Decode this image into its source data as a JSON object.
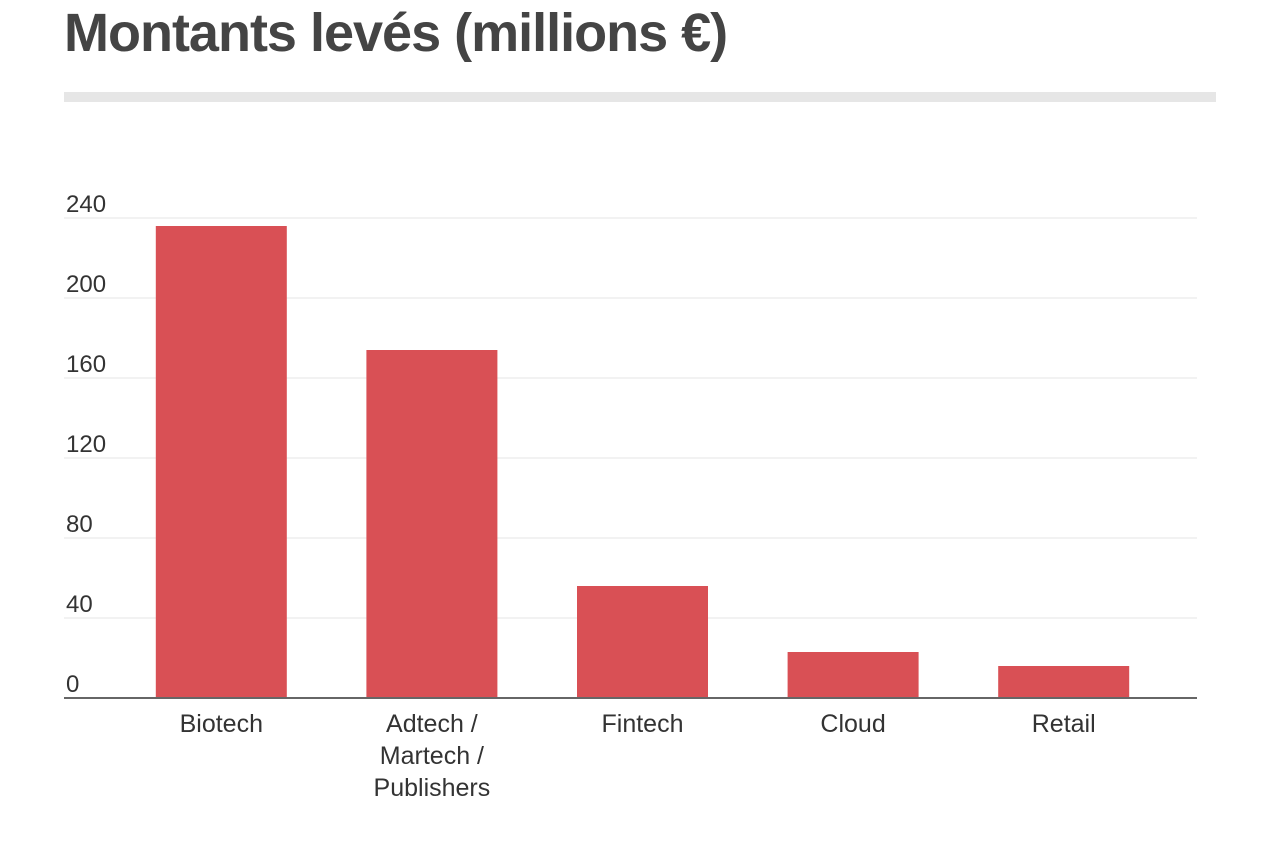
{
  "title": "Montants levés (millions €)",
  "colors": {
    "bar": "#d95055",
    "grid": "#e6e6e6",
    "axis": "#666666",
    "text": "#333333",
    "title": "#444444"
  },
  "chart_data": {
    "type": "bar",
    "title": "Montants levés (millions €)",
    "xlabel": "",
    "ylabel": "",
    "categories": [
      "Biotech",
      "Adtech / Martech / Publishers",
      "Fintech",
      "Cloud",
      "Retail"
    ],
    "category_lines": [
      [
        "Biotech"
      ],
      [
        "Adtech /",
        "Martech /",
        "Publishers"
      ],
      [
        "Fintech"
      ],
      [
        "Cloud"
      ],
      [
        "Retail"
      ]
    ],
    "values": [
      236,
      174,
      56,
      23,
      16
    ],
    "ylim": [
      0,
      240
    ],
    "yticks": [
      0,
      40,
      80,
      120,
      160,
      200,
      240
    ],
    "grid": true,
    "legend": "none"
  }
}
